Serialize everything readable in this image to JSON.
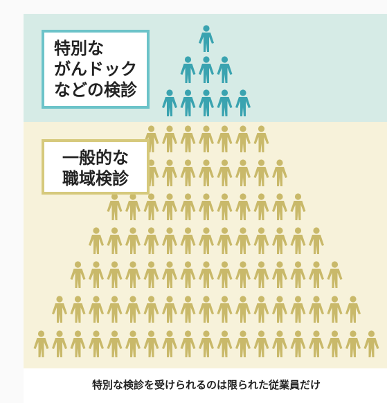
{
  "special_box": {
    "lines": [
      "特別な",
      "がんドック",
      "などの検診"
    ]
  },
  "general_box": {
    "lines": [
      "一般的な",
      "職域検診"
    ]
  },
  "caption": "特別な検診を受けられるのは限られた従業員だけ"
}
